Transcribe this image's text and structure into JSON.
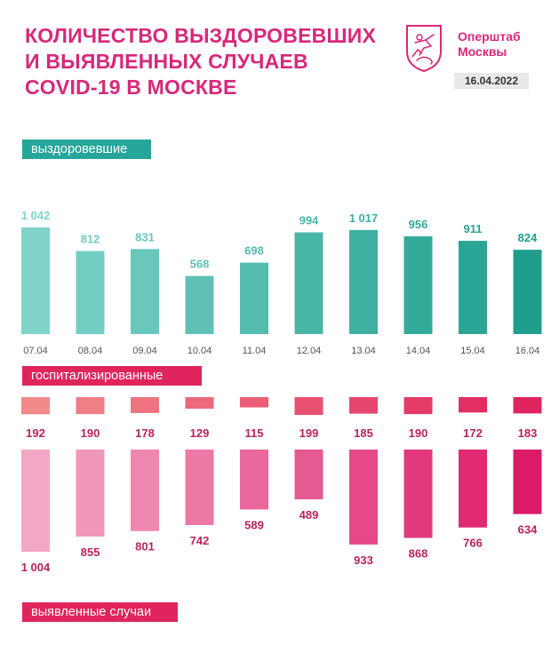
{
  "header": {
    "title_lines": [
      "КОЛИЧЕСТВО ВЫЗДОРОВЕВШИХ",
      "И ВЫЯВЛЕННЫХ СЛУЧАЕВ",
      "COVID-19 В МОСКВЕ"
    ],
    "brand_line1": "Оперштаб",
    "brand_line2": "Москвы",
    "date": "16.04.2022"
  },
  "labels": {
    "recovered": "выздоровевшие",
    "hospitalized": "госпитализированные",
    "detected": "выявленные случаи"
  },
  "colors": {
    "brand": "#d8287a",
    "teal_light": "#7fd3c9",
    "teal_dark": "#1f9e8e",
    "hosp_light": "#f28a8a",
    "hosp_dark": "#e0245e",
    "det_light": "#f4a7c4",
    "det_dark": "#dd1a68"
  },
  "chart_data": {
    "type": "bar",
    "categories": [
      "07.04",
      "08.04",
      "09.04",
      "10.04",
      "11.04",
      "12.04",
      "13.04",
      "14.04",
      "15.04",
      "16.04"
    ],
    "series": [
      {
        "name": "выздоровевшие",
        "values": [
          1042,
          812,
          831,
          568,
          698,
          994,
          1017,
          956,
          911,
          824
        ],
        "labels": [
          "1 042",
          "812",
          "831",
          "568",
          "698",
          "994",
          "1 017",
          "956",
          "911",
          "824"
        ]
      },
      {
        "name": "госпитализированные",
        "values": [
          192,
          190,
          178,
          129,
          115,
          199,
          185,
          190,
          172,
          183
        ],
        "labels": [
          "192",
          "190",
          "178",
          "129",
          "115",
          "199",
          "185",
          "190",
          "172",
          "183"
        ]
      },
      {
        "name": "выявленные случаи",
        "values": [
          1004,
          855,
          801,
          742,
          589,
          489,
          933,
          868,
          766,
          634
        ],
        "labels": [
          "1 004",
          "855",
          "801",
          "742",
          "589",
          "489",
          "933",
          "868",
          "766",
          "634"
        ]
      }
    ],
    "title": "КОЛИЧЕСТВО ВЫЗДОРОВЕВШИХ И ВЫЯВЛЕННЫХ СЛУЧАЕВ COVID-19 В МОСКВЕ"
  }
}
